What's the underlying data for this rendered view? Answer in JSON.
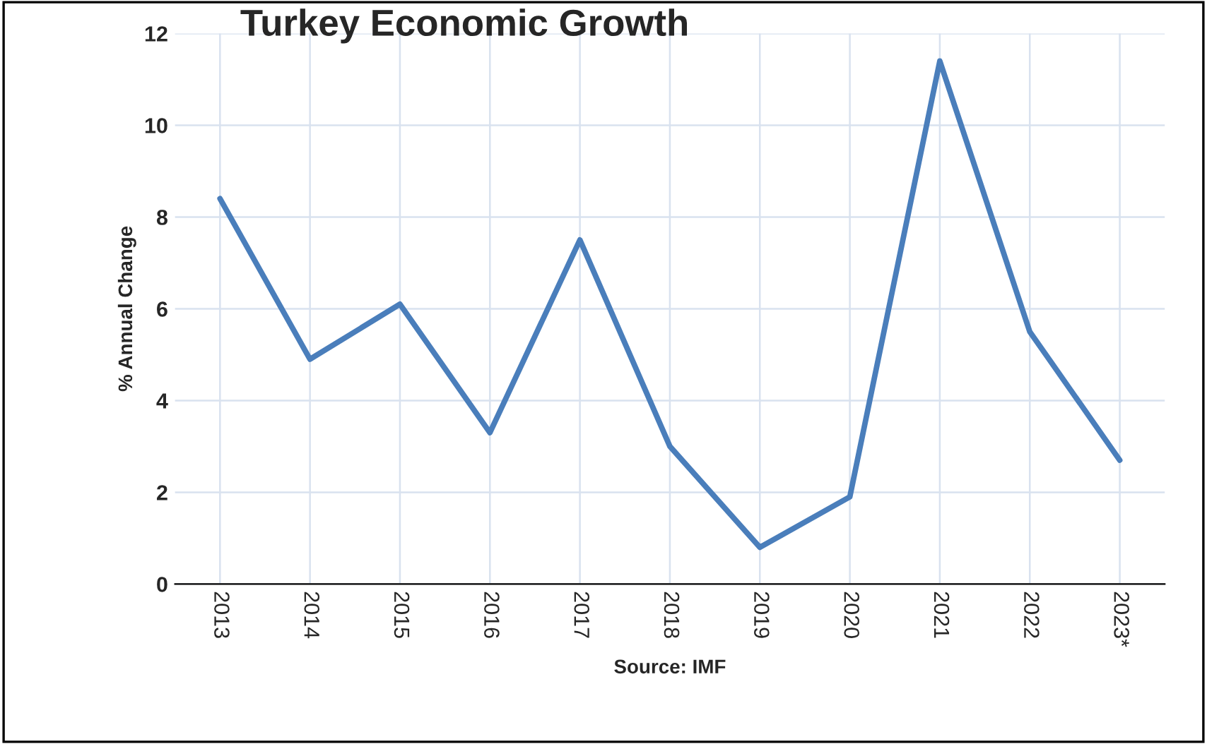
{
  "chart_data": {
    "type": "line",
    "title": "Turkey Economic Growth",
    "ylabel": "% Annual Change",
    "annotations": [
      "Source: IMF"
    ],
    "categories": [
      "2013",
      "2014",
      "2015",
      "2016",
      "2017",
      "2018",
      "2019",
      "2020",
      "2021",
      "2022",
      "2023*"
    ],
    "series": [
      {
        "color": "#4a7ebb",
        "values": [
          8.4,
          4.9,
          6.1,
          3.3,
          7.5,
          3.0,
          0.8,
          1.9,
          11.4,
          5.5,
          2.7
        ]
      }
    ],
    "ylim": [
      0,
      12
    ],
    "yticks": [
      0,
      2,
      4,
      6,
      8,
      10,
      12
    ],
    "grid": true,
    "legend": false,
    "marker": "none",
    "line_style": "solid"
  }
}
